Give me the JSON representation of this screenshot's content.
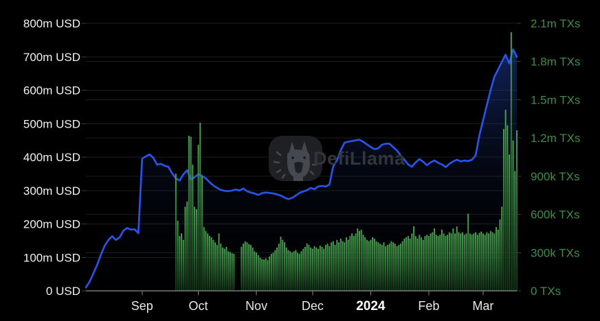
{
  "watermark": {
    "brand": "DefiLlama"
  },
  "y_axis_left": {
    "unit": "USD",
    "max_value_m": 800,
    "labels": [
      {
        "label": "800m USD",
        "value": 800
      },
      {
        "label": "700m USD",
        "value": 700
      },
      {
        "label": "600m USD",
        "value": 600
      },
      {
        "label": "500m USD",
        "value": 500
      },
      {
        "label": "400m USD",
        "value": 400
      },
      {
        "label": "300m USD",
        "value": 300
      },
      {
        "label": "200m USD",
        "value": 200
      },
      {
        "label": "100m USD",
        "value": 100
      },
      {
        "label": "0 USD",
        "value": 0
      }
    ]
  },
  "y_axis_right": {
    "unit": "TXs",
    "max_value_k": 2100,
    "labels": [
      {
        "label": "2.1m TXs",
        "value": 2100
      },
      {
        "label": "1.8m TXs",
        "value": 1800
      },
      {
        "label": "1.5m TXs",
        "value": 1500
      },
      {
        "label": "1.2m TXs",
        "value": 1200
      },
      {
        "label": "900k TXs",
        "value": 900
      },
      {
        "label": "600k TXs",
        "value": 600
      },
      {
        "label": "300k TXs",
        "value": 300
      },
      {
        "label": "0 TXs",
        "value": 0
      }
    ]
  },
  "x_axis": {
    "ticks": [
      {
        "label": "Sep",
        "day": 30,
        "bold": false
      },
      {
        "label": "Oct",
        "day": 60,
        "bold": false
      },
      {
        "label": "Nov",
        "day": 91,
        "bold": false
      },
      {
        "label": "Dec",
        "day": 121,
        "bold": false
      },
      {
        "label": "2024",
        "day": 152,
        "bold": true
      },
      {
        "label": "Feb",
        "day": 183,
        "bold": false
      },
      {
        "label": "Mar",
        "day": 212,
        "bold": false
      }
    ],
    "total_days": 230
  },
  "chart_data": {
    "type": "line+bar",
    "x_range_days": [
      0,
      230
    ],
    "grid": "on",
    "series": [
      {
        "name": "USD value",
        "type": "line",
        "axis": "left",
        "unit": "m USD",
        "start_day": 0,
        "step_days": 2,
        "values": [
          10,
          28,
          52,
          78,
          108,
          135,
          152,
          163,
          152,
          160,
          180,
          188,
          183,
          184,
          172,
          395,
          402,
          408,
          398,
          377,
          380,
          374,
          371,
          352,
          336,
          330,
          348,
          361,
          333,
          340,
          349,
          344,
          336,
          325,
          315,
          308,
          302,
          299,
          298,
          300,
          303,
          300,
          306,
          298,
          294,
          291,
          287,
          292,
          294,
          293,
          291,
          288,
          285,
          279,
          274,
          278,
          285,
          293,
          297,
          301,
          308,
          304,
          312,
          314,
          312,
          318,
          372,
          390,
          420,
          443,
          446,
          448,
          450,
          452,
          446,
          438,
          430,
          424,
          426,
          437,
          440,
          440,
          430,
          420,
          405,
          392,
          378,
          371,
          384,
          394,
          386,
          376,
          384,
          390,
          383,
          378,
          370,
          380,
          387,
          392,
          387,
          390,
          388,
          392,
          405,
          465,
          510,
          556,
          600,
          640,
          662,
          685,
          706,
          680,
          722,
          700
        ]
      },
      {
        "name": "Transactions",
        "type": "bar",
        "axis": "right",
        "unit": "k TXs",
        "start_day": 48,
        "step_days": 1,
        "values": [
          920,
          550,
          430,
          450,
          400,
          660,
          700,
          1217,
          1210,
          990,
          660,
          640,
          1147,
          1319,
          900,
          500,
          470,
          450,
          430,
          420,
          400,
          380,
          360,
          450,
          370,
          340,
          330,
          345,
          310,
          305,
          295,
          290,
          0,
          0,
          0,
          345,
          370,
          388,
          380,
          366,
          360,
          340,
          310,
          300,
          280,
          260,
          250,
          245,
          255,
          240,
          270,
          290,
          300,
          320,
          340,
          370,
          425,
          400,
          380,
          340,
          320,
          310,
          300,
          310,
          320,
          300,
          290,
          310,
          330,
          345,
          371,
          360,
          340,
          330,
          350,
          340,
          330,
          355,
          345,
          330,
          360,
          370,
          350,
          380,
          390,
          360,
          400,
          380,
          410,
          390,
          380,
          420,
          400,
          430,
          450,
          430,
          450,
          490,
          470,
          480,
          440,
          420,
          400,
          390,
          400,
          420,
          410,
          390,
          380,
          370,
          360,
          380,
          350,
          360,
          370,
          390,
          380,
          370,
          350,
          360,
          370,
          390,
          410,
          420,
          430,
          410,
          450,
          506,
          430,
          410,
          440,
          420,
          400,
          430,
          440,
          430,
          450,
          460,
          490,
          440,
          430,
          440,
          480,
          450,
          430,
          440,
          460,
          450,
          490,
          450,
          505,
          460,
          450,
          460,
          440,
          450,
          605,
          450,
          440,
          450,
          460,
          440,
          455,
          465,
          450,
          440,
          460,
          450,
          470,
          460,
          450,
          500,
          480,
          560,
          660,
          1270,
          1421,
          1300,
          1070,
          2030,
          1180,
          940,
          1260
        ]
      }
    ],
    "colors": {
      "background": "#000000",
      "grid_line": "#1e1e1e",
      "axis_line": "#b3b3b3",
      "axis_tick": "#8a8a8a",
      "right_axis_tick": "#3d3d3d",
      "left_label": "#f2f2f2",
      "right_label": "#3e8e46",
      "month_label": "#e8e8e8",
      "month_label_bold": "#ffffff",
      "usd_line": "#2a54e8",
      "usd_area_top": "rgba(44,85,226,0.50)",
      "usd_area_mid": "rgba(20,35,90,0.20)",
      "usd_area_bottom": "rgba(5,9,25,0.04)",
      "tx_bar_top": "#4aa951",
      "tx_bar_mid": "#2f7a37",
      "tx_bar_bottom": "#123317",
      "watermark_box": "#1e2023",
      "watermark_glyph": "#45484e",
      "watermark_text": "#32353b"
    }
  }
}
